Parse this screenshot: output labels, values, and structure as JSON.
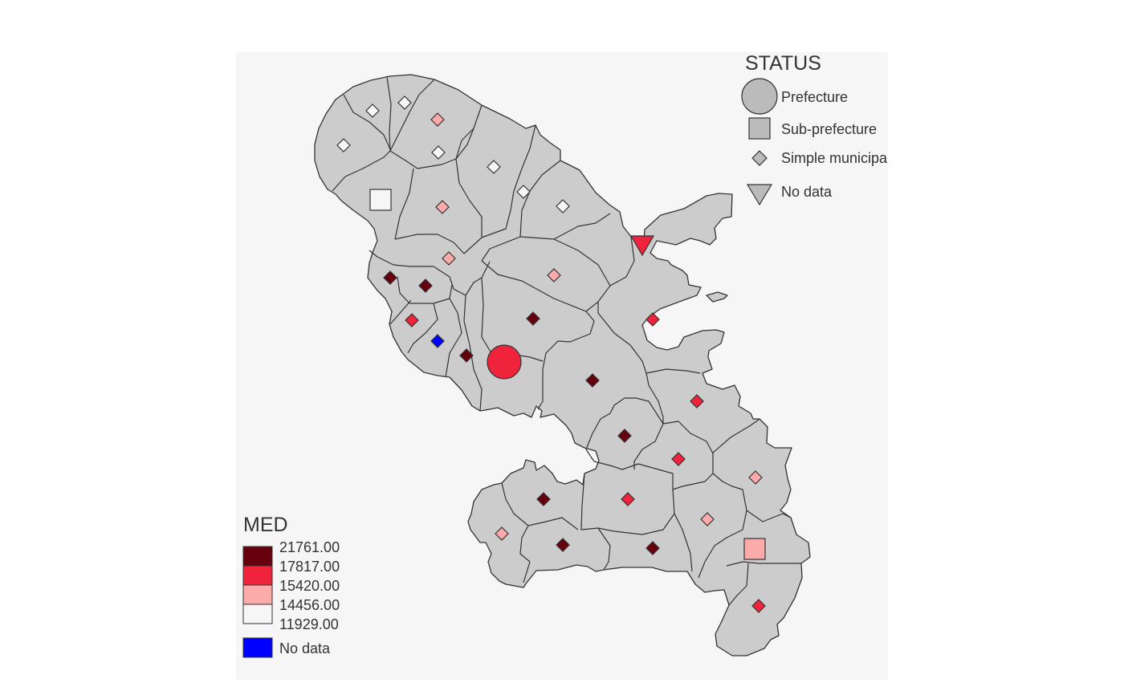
{
  "colors": {
    "background": "#f6f6f6",
    "land": "#cccccc",
    "border": "#333333",
    "symbol_gray": "#bbbbbb",
    "no_data": "#0000ff"
  },
  "status_legend": {
    "title": "STATUS",
    "items": [
      {
        "label": "Prefecture",
        "shape": "circle"
      },
      {
        "label": "Sub-prefecture",
        "shape": "square"
      },
      {
        "label": "Simple municipality",
        "shape": "diamond"
      },
      {
        "label": "No data",
        "shape": "triangle-down"
      }
    ]
  },
  "med_legend": {
    "title": "MED",
    "breaks": [
      "21761.00",
      "17817.00",
      "15420.00",
      "14456.00",
      "11929.00"
    ],
    "colors": [
      "#67000d",
      "#ef233c",
      "#fcaaaa",
      "#f6f6f6"
    ],
    "no_data_label": "No data",
    "no_data_color": "#0000ff"
  },
  "symbols": [
    {
      "shape": "diamond",
      "class": 3
    },
    {
      "shape": "diamond",
      "class": 3
    },
    {
      "shape": "diamond",
      "class": 2
    },
    {
      "shape": "diamond",
      "class": 3
    },
    {
      "shape": "diamond",
      "class": 3
    },
    {
      "shape": "diamond",
      "class": 3
    },
    {
      "shape": "diamond",
      "class": 3
    },
    {
      "shape": "diamond",
      "class": 3
    },
    {
      "shape": "square",
      "class": 3
    },
    {
      "shape": "diamond",
      "class": 2
    },
    {
      "shape": "diamond",
      "class": 3
    },
    {
      "shape": "triangle-down",
      "class": 1
    },
    {
      "shape": "diamond",
      "class": 2
    },
    {
      "shape": "diamond",
      "class": 2
    },
    {
      "shape": "diamond",
      "class": 0
    },
    {
      "shape": "diamond",
      "class": 0
    },
    {
      "shape": "diamond",
      "class": 2
    },
    {
      "shape": "diamond",
      "class": 0
    },
    {
      "shape": "diamond",
      "class": 1
    },
    {
      "shape": "diamond",
      "class": "nodata"
    },
    {
      "shape": "diamond",
      "class": 0
    },
    {
      "shape": "circle",
      "class": 1
    },
    {
      "shape": "diamond",
      "class": 1
    },
    {
      "shape": "diamond",
      "class": 0
    },
    {
      "shape": "diamond",
      "class": 1
    },
    {
      "shape": "diamond",
      "class": 0
    },
    {
      "shape": "diamond",
      "class": 1
    },
    {
      "shape": "diamond",
      "class": 2
    },
    {
      "shape": "diamond",
      "class": 0
    },
    {
      "shape": "diamond",
      "class": 1
    },
    {
      "shape": "diamond",
      "class": 2
    },
    {
      "shape": "diamond",
      "class": 2
    },
    {
      "shape": "diamond",
      "class": 0
    },
    {
      "shape": "diamond",
      "class": 0
    },
    {
      "shape": "square",
      "class": 2
    },
    {
      "shape": "diamond",
      "class": 1
    }
  ]
}
